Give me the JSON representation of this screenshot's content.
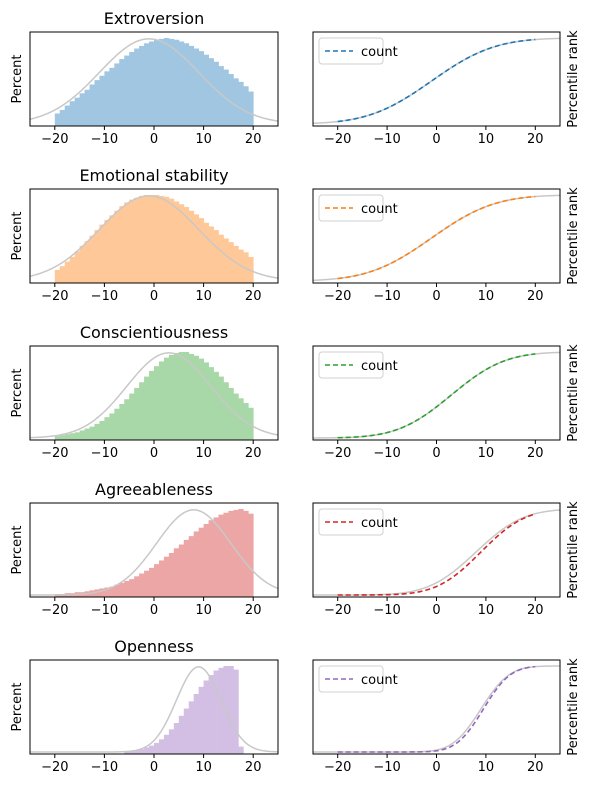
{
  "chart_data": [
    {
      "type": "bar",
      "title": "Extroversion",
      "ylabel": "Percent",
      "xlim": [
        -25,
        25
      ],
      "xticks": [
        "−20",
        "−10",
        "0",
        "10",
        "20"
      ],
      "hist_color": "#a1c6e2",
      "hist_range": [
        -20,
        20
      ],
      "hist_values": [
        0.12,
        0.16,
        0.21,
        0.26,
        0.3,
        0.35,
        0.39,
        0.45,
        0.5,
        0.55,
        0.6,
        0.64,
        0.69,
        0.74,
        0.78,
        0.82,
        0.86,
        0.89,
        0.92,
        0.94,
        0.96,
        0.97,
        0.98,
        0.97,
        0.96,
        0.94,
        0.92,
        0.89,
        0.86,
        0.83,
        0.79,
        0.75,
        0.71,
        0.66,
        0.62,
        0.57,
        0.52,
        0.48,
        0.43,
        0.37
      ],
      "normal_curve": {
        "mean": -1,
        "sd": 10,
        "color": "#c8c8c8"
      }
    },
    {
      "type": "line",
      "ylabel": "Percentile rank",
      "xlim": [
        -25,
        25
      ],
      "xticks": [
        "−20",
        "−10",
        "0",
        "10",
        "20"
      ],
      "legend": {
        "label": "count",
        "loc": "upper left"
      },
      "series": [
        {
          "name": "count",
          "color": "#1f77b4",
          "dash": true,
          "x_range": [
            -20,
            20
          ],
          "cdf": {
            "mean": -1,
            "sd": 10
          }
        }
      ],
      "reference_curve": {
        "mean": -1,
        "sd": 10,
        "color": "#c8c8c8"
      }
    },
    {
      "type": "bar",
      "title": "Emotional stability",
      "ylabel": "Percent",
      "xlim": [
        -25,
        25
      ],
      "xticks": [
        "−20",
        "−10",
        "0",
        "10",
        "20"
      ],
      "hist_color": "#ffc898",
      "hist_range": [
        -20,
        20
      ],
      "hist_values": [
        0.12,
        0.16,
        0.21,
        0.26,
        0.32,
        0.38,
        0.43,
        0.49,
        0.55,
        0.61,
        0.66,
        0.71,
        0.76,
        0.81,
        0.85,
        0.88,
        0.9,
        0.92,
        0.93,
        0.93,
        0.93,
        0.92,
        0.91,
        0.89,
        0.86,
        0.83,
        0.8,
        0.76,
        0.72,
        0.68,
        0.63,
        0.59,
        0.55,
        0.5,
        0.46,
        0.42,
        0.38,
        0.34,
        0.31,
        0.26
      ],
      "normal_curve": {
        "mean": -1,
        "sd": 10,
        "color": "#c8c8c8"
      }
    },
    {
      "type": "line",
      "ylabel": "Percentile rank",
      "xlim": [
        -25,
        25
      ],
      "xticks": [
        "−20",
        "−10",
        "0",
        "10",
        "20"
      ],
      "legend": {
        "label": "count",
        "loc": "upper left"
      },
      "series": [
        {
          "name": "count",
          "color": "#ff7f0e",
          "dash": true,
          "x_range": [
            -20,
            20
          ],
          "cdf": {
            "mean": -1,
            "sd": 10
          }
        }
      ],
      "reference_curve": {
        "mean": -1,
        "sd": 10,
        "color": "#c8c8c8"
      }
    },
    {
      "type": "bar",
      "title": "Conscientiousness",
      "ylabel": "Percent",
      "xlim": [
        -25,
        25
      ],
      "xticks": [
        "−20",
        "−10",
        "0",
        "10",
        "20"
      ],
      "hist_color": "#a8d8a8",
      "hist_range": [
        -20,
        20
      ],
      "hist_values": [
        0.02,
        0.03,
        0.04,
        0.05,
        0.06,
        0.08,
        0.1,
        0.12,
        0.15,
        0.18,
        0.22,
        0.26,
        0.31,
        0.36,
        0.41,
        0.47,
        0.53,
        0.59,
        0.65,
        0.71,
        0.76,
        0.81,
        0.85,
        0.88,
        0.9,
        0.91,
        0.91,
        0.89,
        0.87,
        0.84,
        0.8,
        0.75,
        0.7,
        0.65,
        0.59,
        0.53,
        0.47,
        0.42,
        0.37,
        0.32
      ],
      "normal_curve": {
        "mean": 3,
        "sd": 8.5,
        "color": "#c8c8c8"
      }
    },
    {
      "type": "line",
      "ylabel": "Percentile rank",
      "xlim": [
        -25,
        25
      ],
      "xticks": [
        "−20",
        "−10",
        "0",
        "10",
        "20"
      ],
      "legend": {
        "label": "count",
        "loc": "upper left"
      },
      "series": [
        {
          "name": "count",
          "color": "#2ca02c",
          "dash": true,
          "x_range": [
            -20,
            20
          ],
          "cdf": {
            "mean": 3,
            "sd": 8.5
          }
        }
      ],
      "reference_curve": {
        "mean": 3,
        "sd": 8.5,
        "color": "#c8c8c8"
      }
    },
    {
      "type": "bar",
      "title": "Agreeableness",
      "ylabel": "Percent",
      "xlim": [
        -25,
        25
      ],
      "xticks": [
        "−20",
        "−10",
        "0",
        "10",
        "20"
      ],
      "hist_color": "#eca6a6",
      "hist_range": [
        -20,
        20
      ],
      "hist_values": [
        0.01,
        0.01,
        0.02,
        0.02,
        0.03,
        0.03,
        0.04,
        0.05,
        0.06,
        0.07,
        0.08,
        0.09,
        0.11,
        0.13,
        0.15,
        0.17,
        0.2,
        0.23,
        0.26,
        0.29,
        0.33,
        0.37,
        0.41,
        0.45,
        0.5,
        0.54,
        0.59,
        0.63,
        0.68,
        0.72,
        0.76,
        0.8,
        0.83,
        0.86,
        0.88,
        0.9,
        0.91,
        0.92,
        0.9,
        0.87
      ],
      "normal_curve": {
        "mean": 8,
        "sd": 7.5,
        "color": "#c8c8c8"
      }
    },
    {
      "type": "line",
      "ylabel": "Percentile rank",
      "xlim": [
        -25,
        25
      ],
      "xticks": [
        "−20",
        "−10",
        "0",
        "10",
        "20"
      ],
      "legend": {
        "label": "count",
        "loc": "upper left"
      },
      "series": [
        {
          "name": "count",
          "color": "#d62728",
          "dash": true,
          "x_range": [
            -20,
            20
          ],
          "cdf": {
            "mean": 9,
            "sd": 7
          }
        }
      ],
      "reference_curve": {
        "mean": 8,
        "sd": 7.5,
        "color": "#c8c8c8"
      }
    },
    {
      "type": "bar",
      "title": "Openness",
      "ylabel": "Percent",
      "xlim": [
        -25,
        25
      ],
      "xticks": [
        "−20",
        "−10",
        "0",
        "10",
        "20"
      ],
      "hist_color": "#d2bfe3",
      "hist_range": [
        -20,
        20
      ],
      "hist_values": [
        0,
        0,
        0,
        0,
        0,
        0,
        0,
        0,
        0,
        0,
        0,
        0,
        0,
        0,
        0.01,
        0.01,
        0.02,
        0.03,
        0.05,
        0.07,
        0.1,
        0.14,
        0.19,
        0.25,
        0.32,
        0.4,
        0.48,
        0.56,
        0.64,
        0.72,
        0.79,
        0.85,
        0.9,
        0.93,
        0.95,
        0.95,
        0.91,
        0.06,
        0,
        0
      ],
      "normal_curve": {
        "mean": 9,
        "sd": 4.5,
        "color": "#c8c8c8"
      }
    },
    {
      "type": "line",
      "ylabel": "Percentile rank",
      "xlim": [
        -25,
        25
      ],
      "xticks": [
        "−20",
        "−10",
        "0",
        "10",
        "20"
      ],
      "legend": {
        "label": "count",
        "loc": "upper left"
      },
      "series": [
        {
          "name": "count",
          "color": "#9467bd",
          "dash": true,
          "x_range": [
            -20,
            20
          ],
          "cdf": {
            "mean": 9.5,
            "sd": 4.3
          }
        }
      ],
      "reference_curve": {
        "mean": 9,
        "sd": 4.5,
        "color": "#c8c8c8"
      }
    }
  ]
}
